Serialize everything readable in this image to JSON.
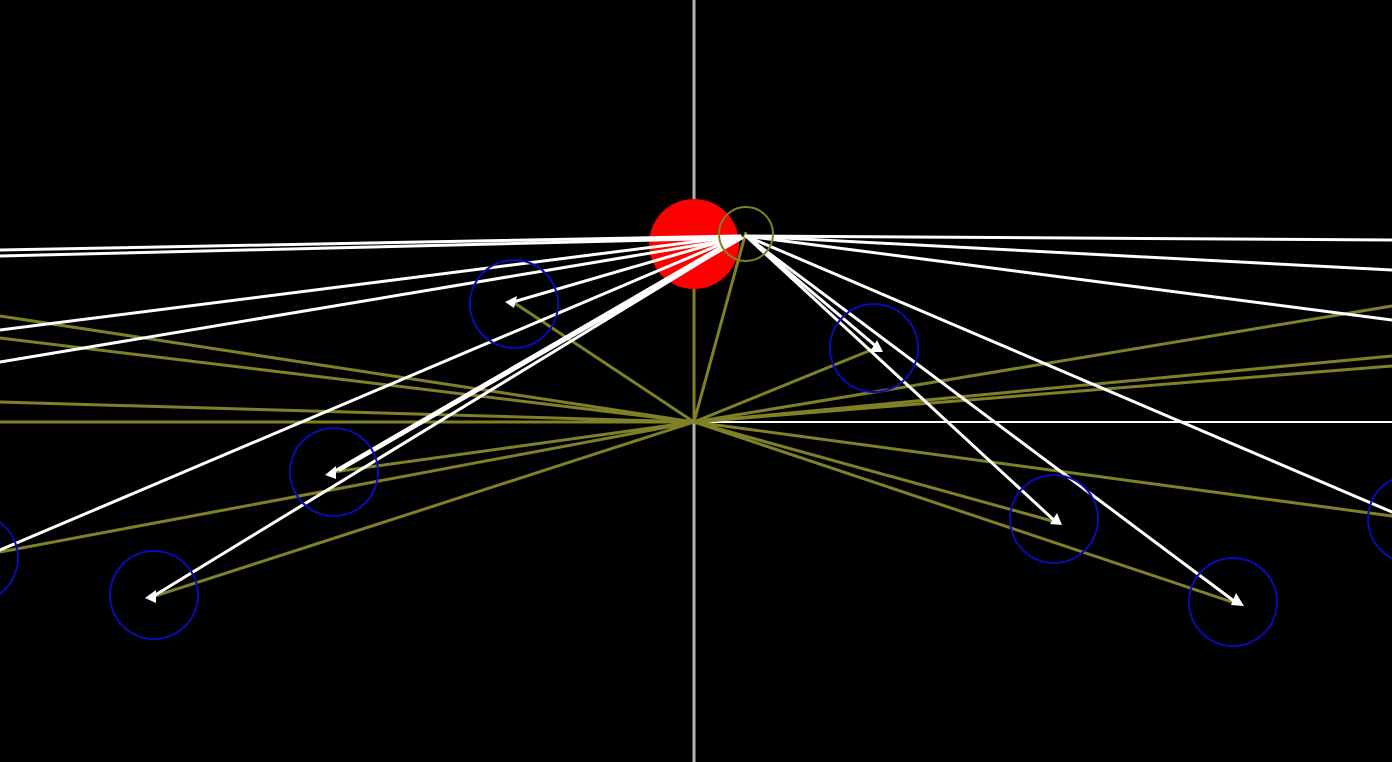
{
  "scene": {
    "colors": {
      "background": "#000000",
      "axis": "#b3b3b3",
      "horizon": "#ffffff",
      "source": "#ff0000",
      "vector": "#ffffff",
      "link": "#808026",
      "node_ring": "#0b0bb4",
      "target_ring": "#808026"
    },
    "nodes": [
      {
        "id": "node-1",
        "arrow_heading": "left"
      },
      {
        "id": "node-2",
        "arrow_heading": "right"
      },
      {
        "id": "node-3",
        "arrow_heading": "left"
      },
      {
        "id": "node-4",
        "arrow_heading": "left"
      },
      {
        "id": "node-5",
        "arrow_heading": "right"
      },
      {
        "id": "node-6",
        "arrow_heading": "right"
      },
      {
        "id": "node-7",
        "arrow_heading": "left"
      },
      {
        "id": "node-8",
        "arrow_heading": "right"
      }
    ]
  }
}
